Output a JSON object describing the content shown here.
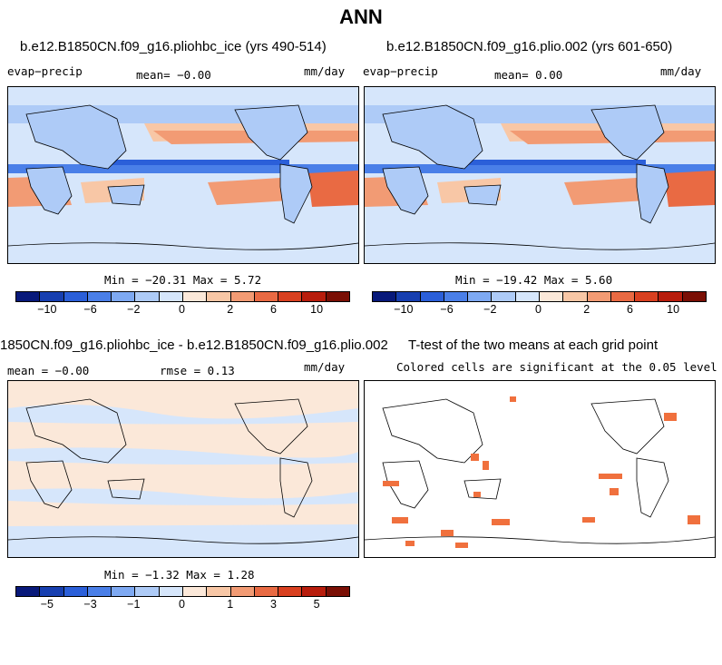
{
  "title": "ANN",
  "colors": {
    "palette10": [
      "#08197a",
      "#173fb0",
      "#2b5fd9",
      "#4a7fe8",
      "#7ea9f2",
      "#aecbf7",
      "#d6e6fb",
      "#fbe8d9",
      "#f8c7a6",
      "#f29b74",
      "#e96a43",
      "#d94020",
      "#b81d0c",
      "#7a0f05"
    ],
    "ocean_light": "#d9e7fb",
    "land": "#c6dcf7"
  },
  "panels": [
    {
      "title": "b.e12.B1850CN.f09_g16.pliohbc_ice (yrs 490-514)",
      "left_label": "evap−precip",
      "center_label": "mean=  −0.00",
      "right_label": "mm/day",
      "stats": "Min = −20.31 Max =    5.72",
      "ticks": [
        "−10",
        "−6",
        "−2",
        "0",
        "2",
        "6",
        "10"
      ]
    },
    {
      "title": "b.e12.B1850CN.f09_g16.plio.002 (yrs 601-650)",
      "left_label": "evap−precip",
      "center_label": "mean=   0.00",
      "right_label": "mm/day",
      "stats": "Min = −19.42 Max =    5.60",
      "ticks": [
        "−10",
        "−6",
        "−2",
        "0",
        "2",
        "6",
        "10"
      ]
    },
    {
      "title": "1850CN.f09_g16.pliohbc_ice - b.e12.B1850CN.f09_g16.plio.002",
      "left_label": "mean =  −0.00",
      "center_label": "rmse =    0.13",
      "right_label": "mm/day",
      "stats": "Min =  −1.32 Max =    1.28",
      "ticks": [
        "−5",
        "−3",
        "−1",
        "0",
        "1",
        "3",
        "5"
      ]
    },
    {
      "title": "T-test of the two means at each grid point",
      "center_label": "Colored cells are significant at the 0.05 level"
    }
  ]
}
